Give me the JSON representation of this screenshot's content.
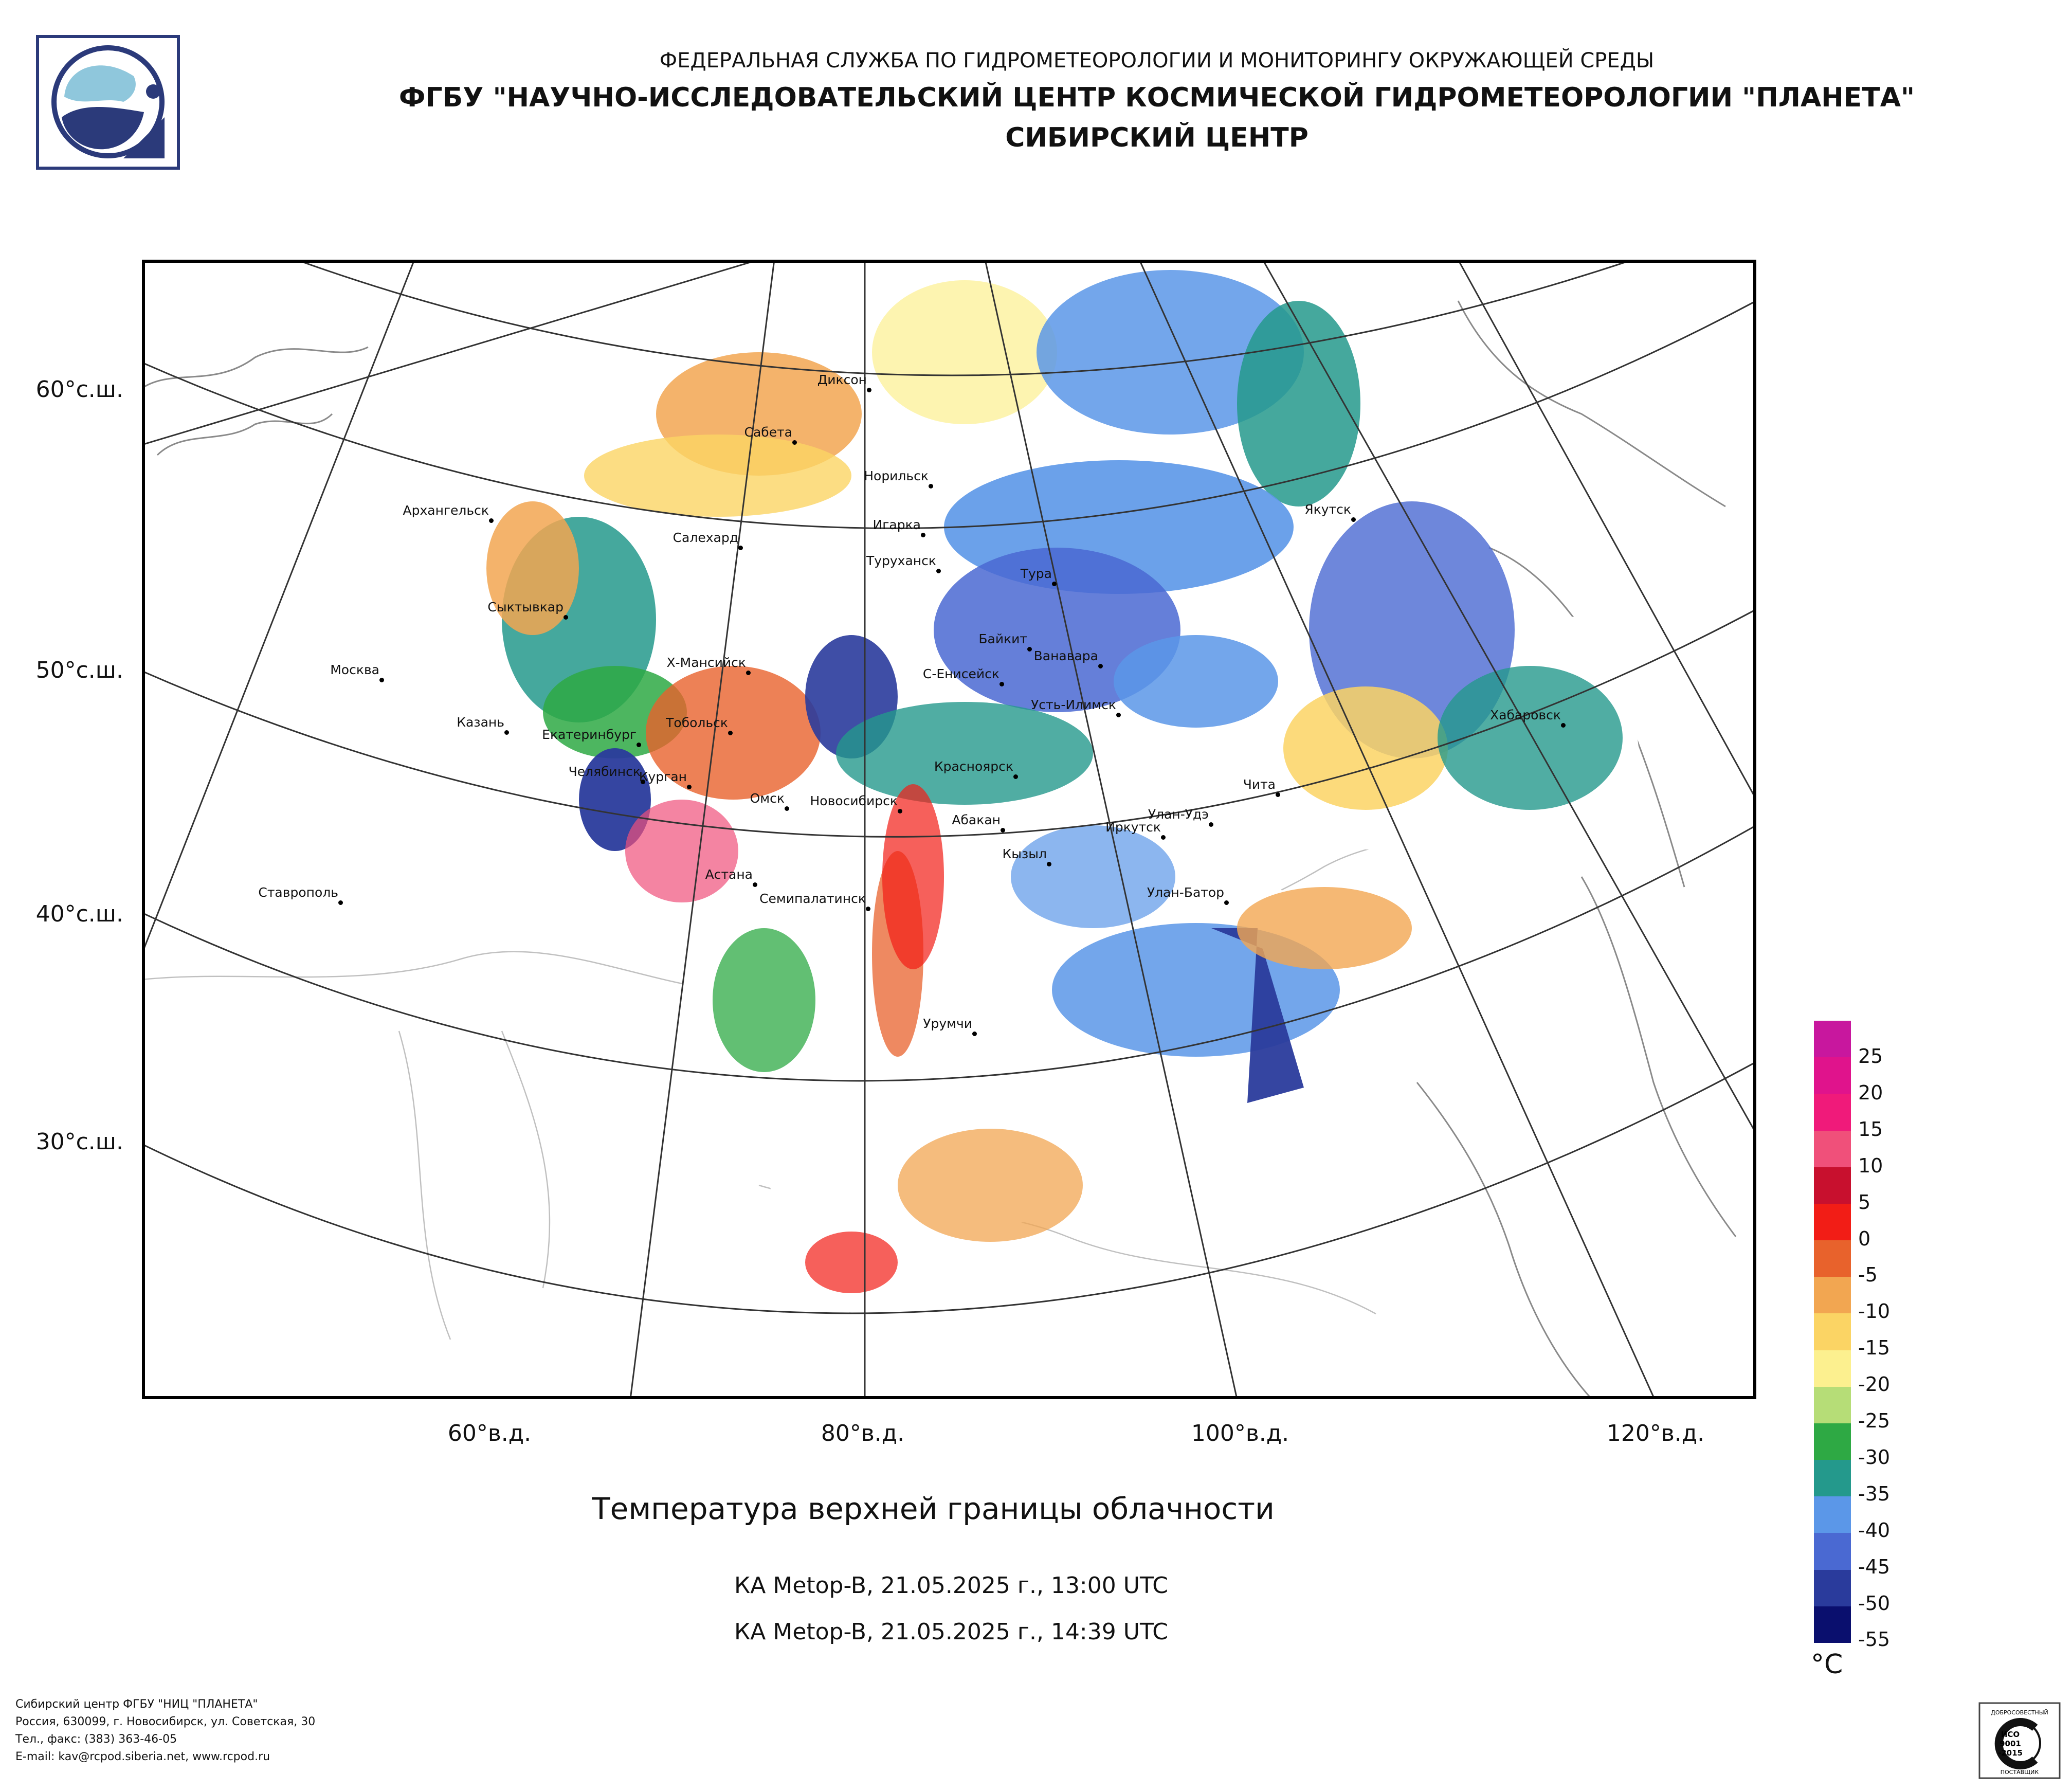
{
  "header": {
    "line1": "ФЕДЕРАЛЬНАЯ СЛУЖБА ПО ГИДРОМЕТЕОРОЛОГИИ И МОНИТОРИНГУ ОКРУЖАЮЩЕЙ СРЕДЫ",
    "line2": "ФГБУ \"НАУЧНО-ИССЛЕДОВАТЕЛЬСКИЙ ЦЕНТР КОСМИЧЕСКОЙ ГИДРОМЕТЕОРОЛОГИИ \"ПЛАНЕТА\"",
    "line3": "СИБИРСКИЙ ЦЕНТР"
  },
  "map": {
    "title": "Температура верхней границы облачности",
    "passes": [
      "КА Metop-B, 21.05.2025 г., 13:00 UTC",
      "КА Metop-B, 21.05.2025 г., 14:39 UTC"
    ],
    "lat_labels": [
      "60°с.ш.",
      "50°с.ш.",
      "40°с.ш.",
      "30°с.ш."
    ],
    "lon_labels": [
      "60°в.д.",
      "80°в.д.",
      "100°в.д.",
      "120°в.д."
    ],
    "cities": [
      "Диксон",
      "Сабета",
      "Норильск",
      "Якутск",
      "Архангельск",
      "Салехард",
      "Игарка",
      "Туруханск",
      "Тура",
      "Сыктывкар",
      "Байкит",
      "Ванавара",
      "Москва",
      "Х-Мансийск",
      "С-Енисейск",
      "Усть-Илимск",
      "Хабаровск",
      "Казань",
      "Тобольск",
      "Екатеринбург",
      "Красноярск",
      "Челябинск",
      "Чита",
      "Курган",
      "Омск",
      "Новосибирск",
      "Абакан",
      "Улан-Удэ",
      "Иркутск",
      "Кызыл",
      "Астана",
      "Ставрополь",
      "Семипалатинск",
      "Улан-Батор",
      "Урумчи"
    ]
  },
  "legend": {
    "unit": "°C",
    "ticks": [
      "25",
      "20",
      "15",
      "10",
      "5",
      "0",
      "-5",
      "-10",
      "-15",
      "-20",
      "-25",
      "-30",
      "-35",
      "-40",
      "-45",
      "-50",
      "-55"
    ],
    "colors": [
      "#c8179e",
      "#e0138c",
      "#f01a7a",
      "#f0507a",
      "#c8102e",
      "#f21d16",
      "#e8622c",
      "#f2a651",
      "#fbd464",
      "#fcf08f",
      "#b6dd77",
      "#2ea944",
      "#24998c",
      "#5b97e8",
      "#4a69d2",
      "#2a3b9c",
      "#0a0f6e"
    ]
  },
  "footer": {
    "lines": [
      "Сибирский центр ФГБУ \"НИЦ \"ПЛАНЕТА\"",
      "Россия, 630099, г. Новосибирск, ул. Советская, 30",
      "Тел., факс: (383) 363-46-05",
      "E-mail: kav@rcpod.siberia.net, www.rcpod.ru"
    ]
  },
  "iso_badge": {
    "top": "ДОБРОСОВЕСТНЫЙ",
    "lines": [
      "ИСО",
      "9001",
      "-2015"
    ],
    "bottom": "ПОСТАВЩИК"
  }
}
